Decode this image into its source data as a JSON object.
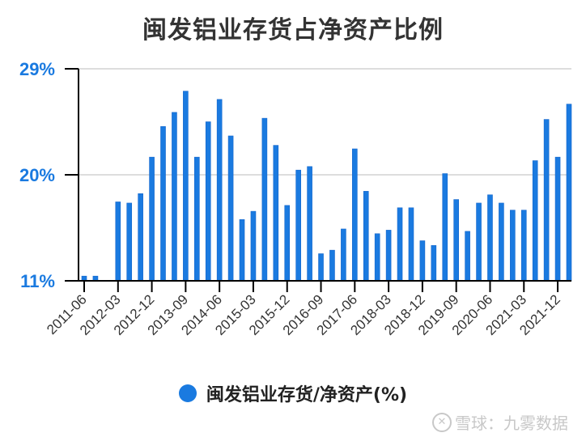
{
  "title": "闽发铝业存货占净资产比例",
  "legend": {
    "label": "闽发铝业存货/净资产(%)",
    "color": "#1a7ae0"
  },
  "watermark": {
    "icon": "snowball-logo-icon",
    "text": "雪球：九雾数据"
  },
  "chart_data": {
    "type": "bar",
    "title": "闽发铝业存货占净资产比例",
    "xlabel": "",
    "ylabel": "",
    "ylim": [
      11,
      29
    ],
    "yticks": [
      "11%",
      "20%",
      "29%"
    ],
    "ytick_values": [
      11,
      20,
      29
    ],
    "grid": true,
    "legend_position": "bottom",
    "xtick_labels": [
      "2011-06",
      "2012-03",
      "2012-12",
      "2013-09",
      "2014-06",
      "2015-03",
      "2015-12",
      "2016-09",
      "2017-06",
      "2018-03",
      "2018-12",
      "2019-09",
      "2020-06",
      "2021-03",
      "2021-12"
    ],
    "categories": [
      "2011-06",
      "2011-09",
      "2011-12",
      "2012-03",
      "2012-06",
      "2012-09",
      "2012-12",
      "2013-03",
      "2013-06",
      "2013-09",
      "2013-12",
      "2014-03",
      "2014-06",
      "2014-09",
      "2014-12",
      "2015-03",
      "2015-06",
      "2015-09",
      "2015-12",
      "2016-03",
      "2016-06",
      "2016-09",
      "2016-12",
      "2017-03",
      "2017-06",
      "2017-09",
      "2017-12",
      "2018-03",
      "2018-06",
      "2018-09",
      "2018-12",
      "2019-03",
      "2019-06",
      "2019-09",
      "2019-12",
      "2020-03",
      "2020-06",
      "2020-09",
      "2020-12",
      "2021-03",
      "2021-06",
      "2021-09",
      "2021-12",
      "2022-03"
    ],
    "series": [
      {
        "name": "闽发铝业存货/净资产(%)",
        "color": "#1a7ae0",
        "values": [
          11.4,
          11.4,
          null,
          17.7,
          17.6,
          18.4,
          21.5,
          24.1,
          25.3,
          27.1,
          21.5,
          24.5,
          26.4,
          23.3,
          16.2,
          16.9,
          24.8,
          22.5,
          17.4,
          20.4,
          20.7,
          13.3,
          13.6,
          15.4,
          22.2,
          18.6,
          15.0,
          15.3,
          17.2,
          17.2,
          14.4,
          14.0,
          20.1,
          17.9,
          15.2,
          17.6,
          18.3,
          17.6,
          17.0,
          17.0,
          21.2,
          24.7,
          21.5,
          26.0
        ]
      }
    ]
  }
}
